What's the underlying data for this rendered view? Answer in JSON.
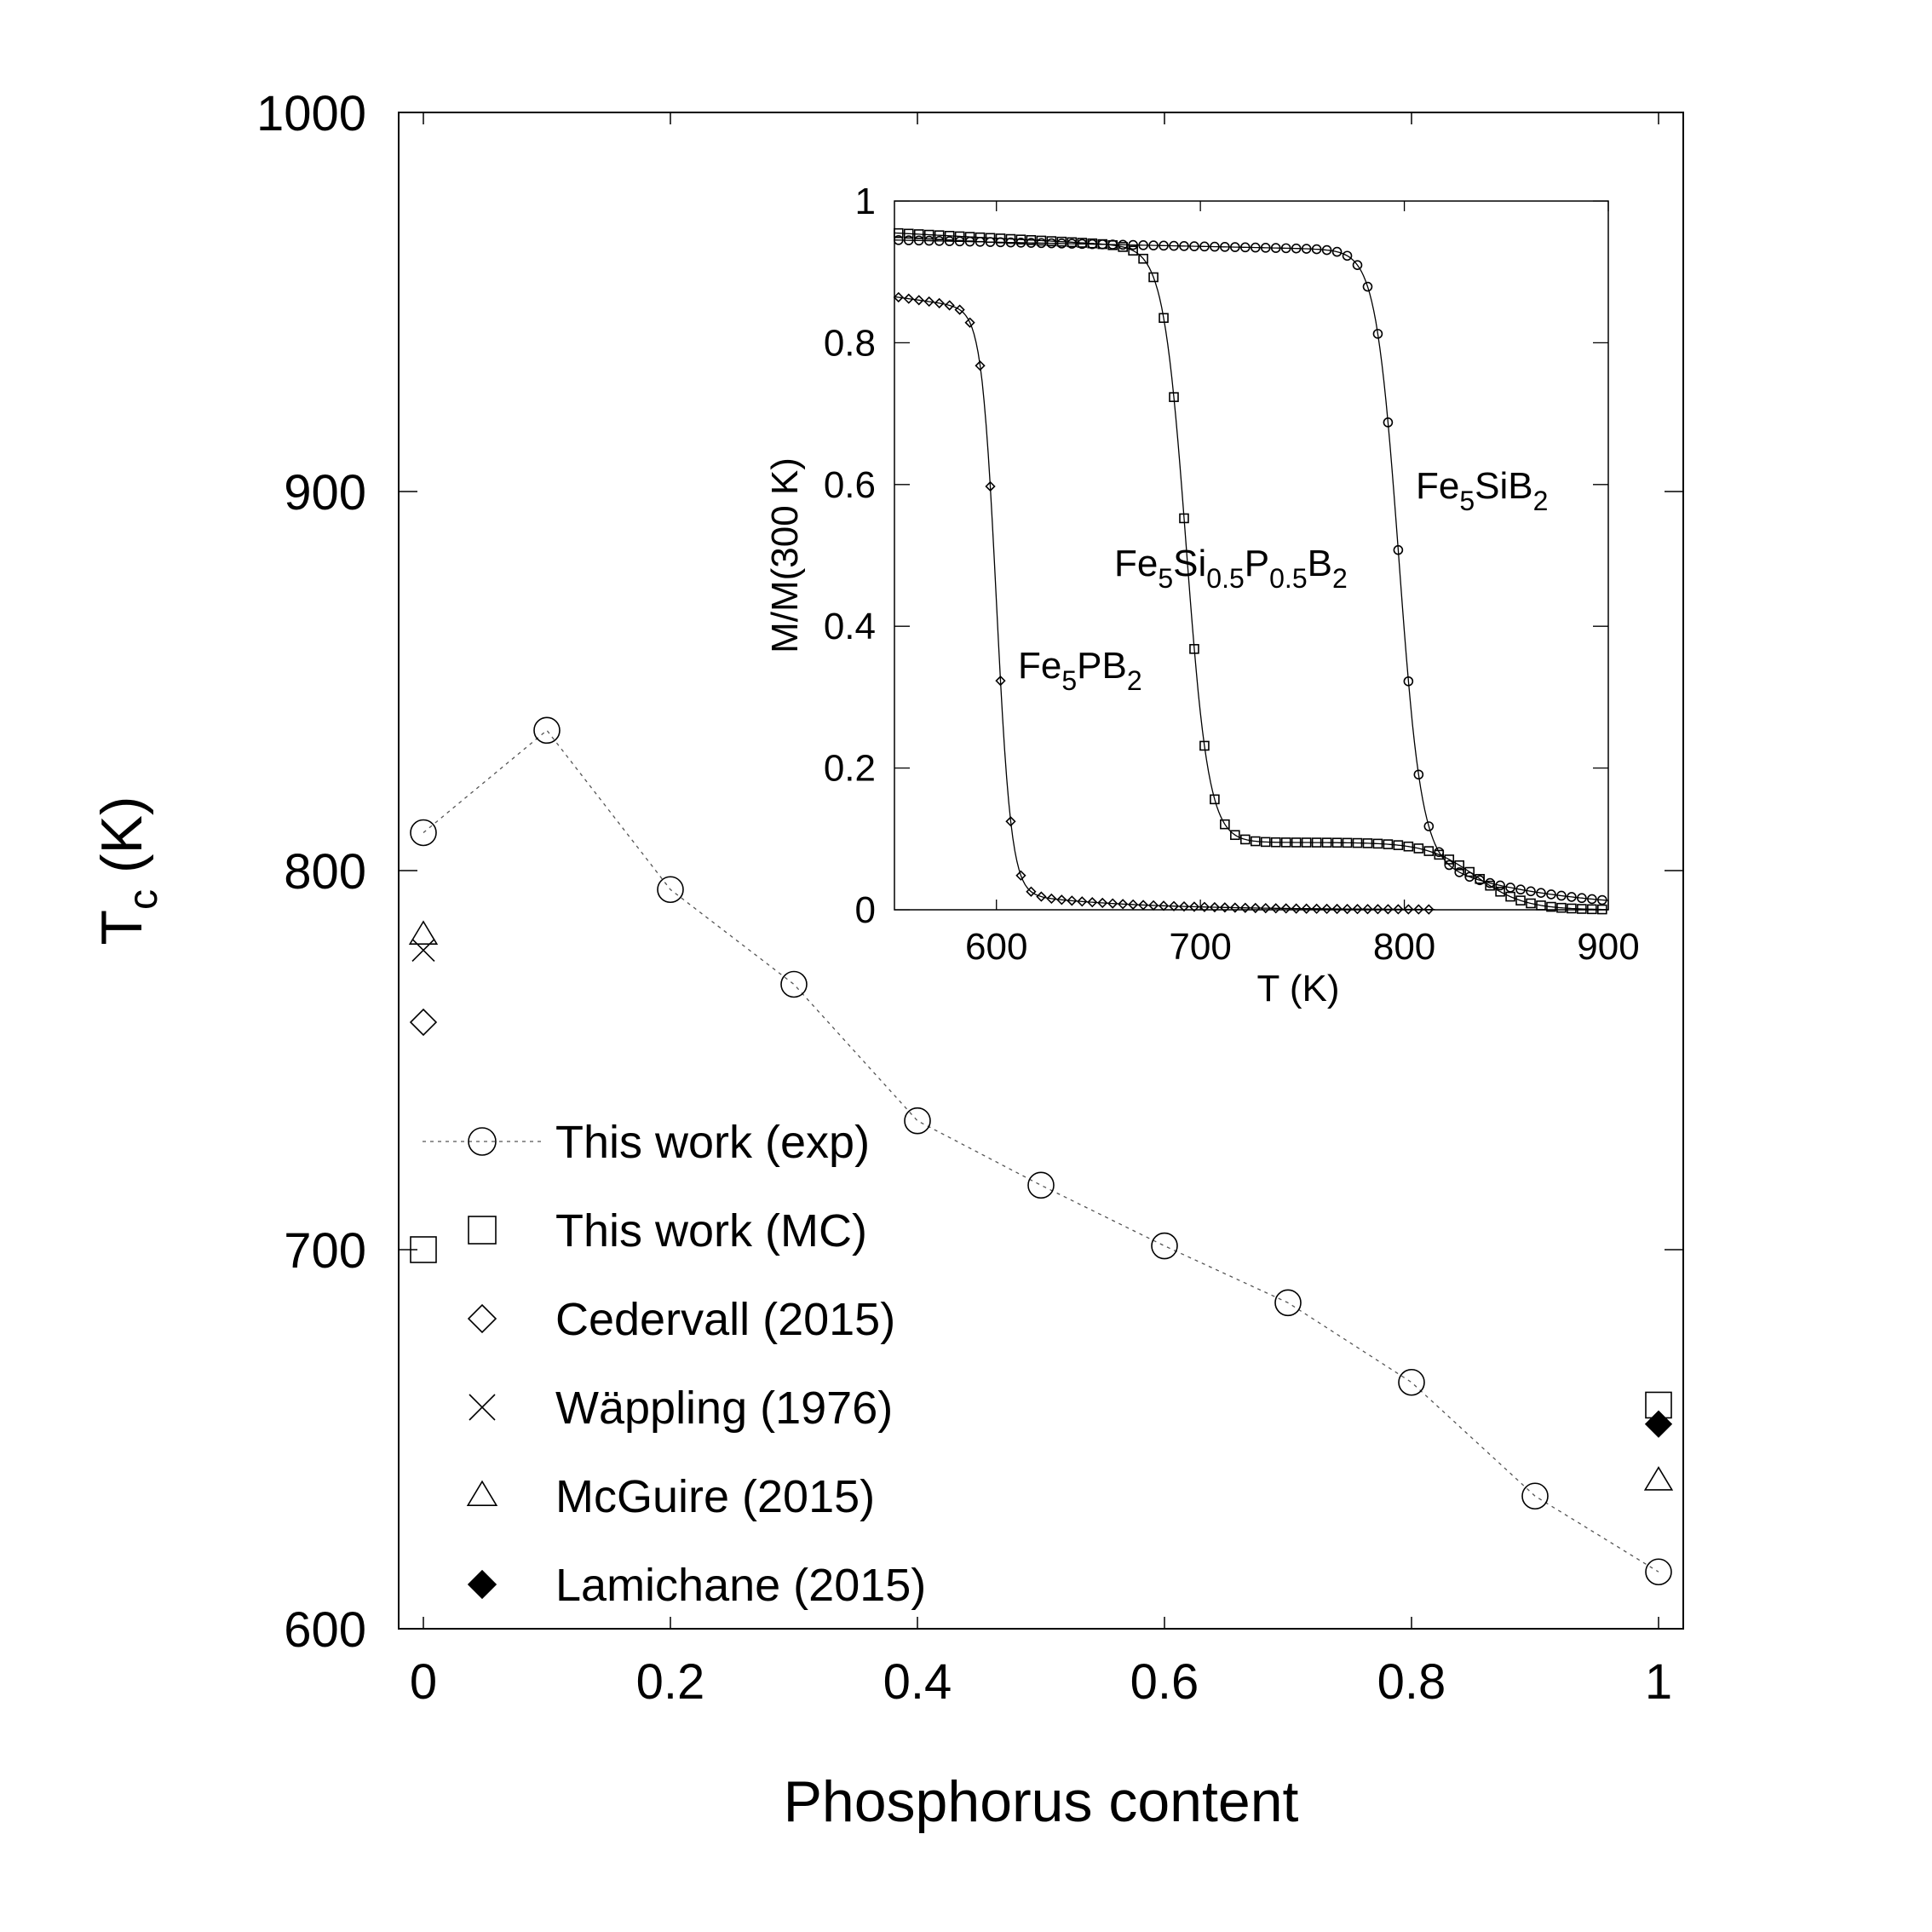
{
  "chart_data": [
    {
      "type": "scatter",
      "xlabel": "Phosphorus content",
      "ylabel": "T",
      "ylabel_sub": "c",
      "ylabel_unit": " (K)",
      "xlim": [
        -0.02,
        1.02
      ],
      "ylim": [
        600,
        1000
      ],
      "xticks": [
        0,
        0.2,
        0.4,
        0.6,
        0.8,
        1
      ],
      "xtick_labels": [
        "0",
        "0.2",
        "0.4",
        "0.6",
        "0.8",
        "1"
      ],
      "yticks": [
        600,
        700,
        800,
        900,
        1000
      ],
      "ytick_labels": [
        "600",
        "700",
        "800",
        "900",
        "1000"
      ],
      "grid": false,
      "legend_placement": "bottom-left",
      "series": [
        {
          "name": "This work (exp)",
          "marker": "circle",
          "line": "dotted",
          "x": [
            0,
            0.1,
            0.2,
            0.3,
            0.4,
            0.5,
            0.6,
            0.7,
            0.8,
            0.9,
            1.0
          ],
          "y": [
            810,
            837,
            795,
            770,
            734,
            717,
            701,
            686,
            665,
            635,
            615
          ]
        },
        {
          "name": "This work (MC)",
          "marker": "square",
          "x": [
            0,
            1
          ],
          "y": [
            700,
            659
          ]
        },
        {
          "name": "Cedervall (2015)",
          "marker": "diamond",
          "x": [
            0
          ],
          "y": [
            760
          ]
        },
        {
          "name": "Wäppling (1976)",
          "marker": "cross",
          "x": [
            0
          ],
          "y": [
            779
          ]
        },
        {
          "name": "McGuire (2015)",
          "marker": "triangle",
          "x": [
            0,
            1
          ],
          "y": [
            783,
            639
          ]
        },
        {
          "name": "Lamichane (2015)",
          "marker": "filled-diamond",
          "x": [
            1
          ],
          "y": [
            654
          ]
        }
      ]
    },
    {
      "type": "line",
      "xlabel": "T (K)",
      "ylabel": "M/M(300 K)",
      "xlim": [
        550,
        900
      ],
      "ylim": [
        0,
        1
      ],
      "xticks": [
        600,
        700,
        800,
        900
      ],
      "xtick_labels": [
        "600",
        "700",
        "800",
        "900"
      ],
      "yticks": [
        0,
        0.2,
        0.4,
        0.6,
        0.8,
        1
      ],
      "ytick_labels": [
        "0",
        "0.2",
        "0.4",
        "0.6",
        "0.8",
        "1"
      ],
      "grid": false,
      "series": [
        {
          "label": "Fe5PB2",
          "label_parts": [
            [
              "Fe",
              ""
            ],
            [
              "5",
              "sub"
            ],
            [
              "PB",
              ""
            ],
            [
              "2",
              "sub"
            ]
          ],
          "marker": "diamond",
          "Tc": 600,
          "M0": 0.865,
          "slope": 0.0004,
          "drop": 0.8,
          "width": 3.6,
          "tail": 0.025,
          "tailDecay": 55,
          "xmax": 815,
          "step": 5
        },
        {
          "label": "Fe5Si0.5P0.5B2",
          "label_parts": [
            [
              "Fe",
              ""
            ],
            [
              "5",
              "sub"
            ],
            [
              "Si",
              ""
            ],
            [
              "0.5",
              "sub"
            ],
            [
              "P",
              ""
            ],
            [
              "0.5",
              "sub"
            ],
            [
              "B",
              ""
            ],
            [
              "2",
              "sub"
            ]
          ],
          "marker": "square",
          "Tc": 693,
          "M0": 0.955,
          "slope": 0.00015,
          "drop": 0.81,
          "width": 5.5,
          "tail": 0.095,
          "tailDecay": 0,
          "tailCut": 835,
          "tailCutWidth": 12,
          "xmax": 900,
          "step": 5
        },
        {
          "label": "Fe5SiB2",
          "label_parts": [
            [
              "Fe",
              ""
            ],
            [
              "5",
              "sub"
            ],
            [
              "SiB",
              ""
            ],
            [
              "2",
              "sub"
            ]
          ],
          "marker": "circle",
          "Tc": 797,
          "M0": 0.945,
          "slope": 6e-05,
          "drop": 0.85,
          "width": 5.5,
          "tail": 0.085,
          "tailDecay": 55,
          "xmax": 900,
          "step": 5
        }
      ]
    }
  ]
}
